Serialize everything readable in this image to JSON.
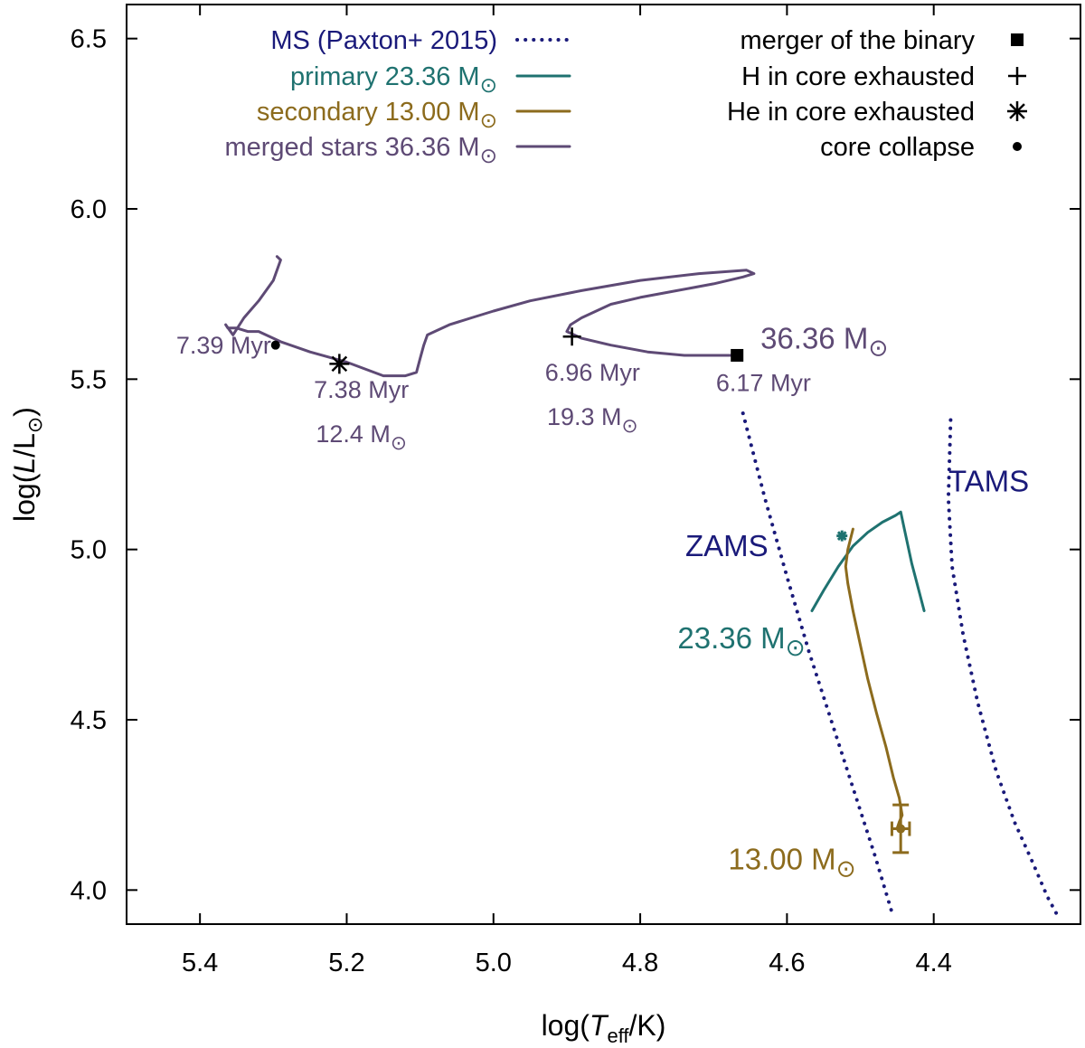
{
  "chart_data": {
    "type": "line",
    "xlabel": {
      "prefix": "log(",
      "italic": "T",
      "sub": "eff",
      "suffix": "/K)"
    },
    "ylabel": {
      "prefix": "log(",
      "italic": "L",
      "mid": "/L",
      "sun": "⊙",
      "suffix": ")"
    },
    "xlim": [
      5.5,
      4.2
    ],
    "ylim": [
      3.9,
      6.6
    ],
    "xticks": [
      5.4,
      5.2,
      5.0,
      4.8,
      4.6,
      4.4
    ],
    "yticks": [
      4.0,
      4.5,
      5.0,
      5.5,
      6.0,
      6.5
    ],
    "xtick_labels": [
      "5.4",
      "5.2",
      "5.0",
      "4.8",
      "4.6",
      "4.4"
    ],
    "ytick_labels": [
      "4.0",
      "4.5",
      "5.0",
      "5.5",
      "6.0",
      "6.5"
    ],
    "colors": {
      "ms": "#1a1a7a",
      "primary": "#1f7270",
      "secondary": "#8c6b1d",
      "merged": "#5e4a75",
      "marker": "#000000"
    },
    "legend_left": [
      {
        "key": "ms",
        "label": "MS (Paxton+ 2015)",
        "style": "dotted"
      },
      {
        "key": "primary",
        "label": "primary 23.36 M",
        "sun": "⊙",
        "style": "solid"
      },
      {
        "key": "secondary",
        "label": "secondary 13.00 M",
        "sun": "⊙",
        "style": "solid"
      },
      {
        "key": "merged",
        "label": "merged stars 36.36 M",
        "sun": "⊙",
        "style": "solid"
      }
    ],
    "legend_right": [
      {
        "label": "merger of the binary",
        "marker": "square"
      },
      {
        "label": "H in core exhausted",
        "marker": "plus"
      },
      {
        "label": "He in core exhausted",
        "marker": "asterisk"
      },
      {
        "label": "core collapse",
        "marker": "dot"
      }
    ],
    "series": [
      {
        "name": "ZAMS",
        "key": "ms",
        "style": "dotted",
        "x": [
          4.66,
          4.63,
          4.6,
          4.57,
          4.54,
          4.51,
          4.48,
          4.455
        ],
        "y": [
          5.4,
          5.15,
          4.92,
          4.7,
          4.5,
          4.3,
          4.1,
          3.92
        ]
      },
      {
        "name": "TAMS",
        "key": "ms",
        "style": "dotted",
        "x": [
          4.377,
          4.38,
          4.375,
          4.36,
          4.34,
          4.315,
          4.29,
          4.265,
          4.245,
          4.23
        ],
        "y": [
          5.38,
          5.15,
          4.95,
          4.75,
          4.55,
          4.35,
          4.2,
          4.08,
          3.98,
          3.92
        ]
      },
      {
        "name": "primary 23.36 M⊙",
        "key": "primary",
        "style": "solid",
        "x": [
          4.566,
          4.55,
          4.53,
          4.51,
          4.49,
          4.47,
          4.452,
          4.445,
          4.44,
          4.43,
          4.413
        ],
        "y": [
          4.82,
          4.88,
          4.95,
          5.01,
          5.05,
          5.08,
          5.1,
          5.11,
          5.06,
          4.96,
          4.82
        ]
      },
      {
        "name": "secondary 13.00 M⊙",
        "key": "secondary",
        "style": "solid",
        "x": [
          4.51,
          4.517,
          4.52,
          4.517,
          4.51,
          4.5,
          4.49,
          4.478,
          4.465,
          4.455,
          4.447,
          4.443,
          4.447,
          4.45
        ],
        "y": [
          5.06,
          5.0,
          4.95,
          4.9,
          4.82,
          4.72,
          4.62,
          4.52,
          4.42,
          4.33,
          4.27,
          4.22,
          4.2,
          4.18
        ]
      },
      {
        "name": "merged stars 36.36 M⊙",
        "key": "merged",
        "style": "solid",
        "x": [
          4.668,
          4.7,
          4.74,
          4.79,
          4.84,
          4.88,
          4.9,
          4.895,
          4.88,
          4.86,
          4.84,
          4.8,
          4.75,
          4.7,
          4.66,
          4.645,
          4.655,
          4.72,
          4.8,
          4.88,
          4.95,
          5.0,
          5.03,
          5.06,
          5.08,
          5.09,
          5.095,
          5.1,
          5.105,
          5.12,
          5.15,
          5.2,
          5.25,
          5.29,
          5.31,
          5.32,
          5.335,
          5.35,
          5.362,
          5.365,
          5.355,
          5.34,
          5.32,
          5.3,
          5.29,
          5.295
        ],
        "y": [
          5.57,
          5.57,
          5.57,
          5.58,
          5.6,
          5.62,
          5.64,
          5.66,
          5.68,
          5.7,
          5.72,
          5.74,
          5.76,
          5.78,
          5.8,
          5.81,
          5.82,
          5.81,
          5.79,
          5.76,
          5.73,
          5.7,
          5.68,
          5.66,
          5.64,
          5.63,
          5.6,
          5.56,
          5.52,
          5.51,
          5.51,
          5.55,
          5.58,
          5.61,
          5.63,
          5.64,
          5.64,
          5.65,
          5.65,
          5.66,
          5.63,
          5.68,
          5.73,
          5.79,
          5.85,
          5.86
        ]
      }
    ],
    "markers": [
      {
        "name": "merger-marker",
        "marker": "square",
        "key": "marker",
        "x": 4.668,
        "y": 5.57
      },
      {
        "name": "h-exhausted-marker",
        "marker": "plus",
        "key": "marker",
        "x": 4.893,
        "y": 5.625
      },
      {
        "name": "he-exhausted-marker",
        "marker": "asterisk",
        "key": "marker",
        "x": 5.21,
        "y": 5.545
      },
      {
        "name": "core-collapse-marker",
        "marker": "dot",
        "key": "marker",
        "x": 5.297,
        "y": 5.6
      },
      {
        "name": "primary-small-marker",
        "marker": "asterisk-small",
        "key": "primary",
        "x": 4.525,
        "y": 5.04
      }
    ],
    "error_points": [
      {
        "name": "secondary-observed-point",
        "key": "secondary",
        "x": 4.445,
        "y": 4.18,
        "xerr": 0.012,
        "yerr": 0.07
      }
    ],
    "annotations": [
      {
        "name": "annot-7-39-myr",
        "text": "7.39 Myr",
        "key": "merged",
        "x": 5.303,
        "y": 5.575,
        "anchor": "end",
        "big": false
      },
      {
        "name": "annot-7-38-myr",
        "text": "7.38 Myr",
        "key": "merged",
        "x": 5.18,
        "y": 5.445,
        "anchor": "middle",
        "big": false
      },
      {
        "name": "annot-12-4-msun",
        "text": "12.4 M",
        "sun": "⊙",
        "key": "merged",
        "x": 5.18,
        "y": 5.315,
        "anchor": "middle",
        "big": false
      },
      {
        "name": "annot-6-96-myr",
        "text": "6.96 Myr",
        "key": "merged",
        "x": 4.865,
        "y": 5.495,
        "anchor": "middle",
        "big": false
      },
      {
        "name": "annot-19-3-msun",
        "text": "19.3 M",
        "sun": "⊙",
        "key": "merged",
        "x": 4.865,
        "y": 5.365,
        "anchor": "middle",
        "big": false
      },
      {
        "name": "annot-6-17-myr",
        "text": "6.17 Myr",
        "key": "merged",
        "x": 4.632,
        "y": 5.465,
        "anchor": "middle",
        "big": false
      },
      {
        "name": "annot-36-36-msun",
        "text": "36.36 M",
        "sun": "⊙",
        "key": "merged",
        "x": 4.549,
        "y": 5.59,
        "anchor": "middle",
        "big": true
      },
      {
        "name": "annot-zams",
        "text": "ZAMS",
        "key": "ms",
        "x": 4.682,
        "y": 4.98,
        "anchor": "middle",
        "big": true
      },
      {
        "name": "annot-tams",
        "text": "TAMS",
        "key": "ms",
        "x": 4.325,
        "y": 5.17,
        "anchor": "middle",
        "big": true
      },
      {
        "name": "annot-23-36-msun",
        "text": "23.36 M",
        "sun": "⊙",
        "key": "primary",
        "x": 4.662,
        "y": 4.71,
        "anchor": "middle",
        "big": true
      },
      {
        "name": "annot-13-00-msun",
        "text": "13.00 M",
        "sun": "⊙",
        "key": "secondary",
        "x": 4.593,
        "y": 4.06,
        "anchor": "middle",
        "big": true
      }
    ]
  }
}
